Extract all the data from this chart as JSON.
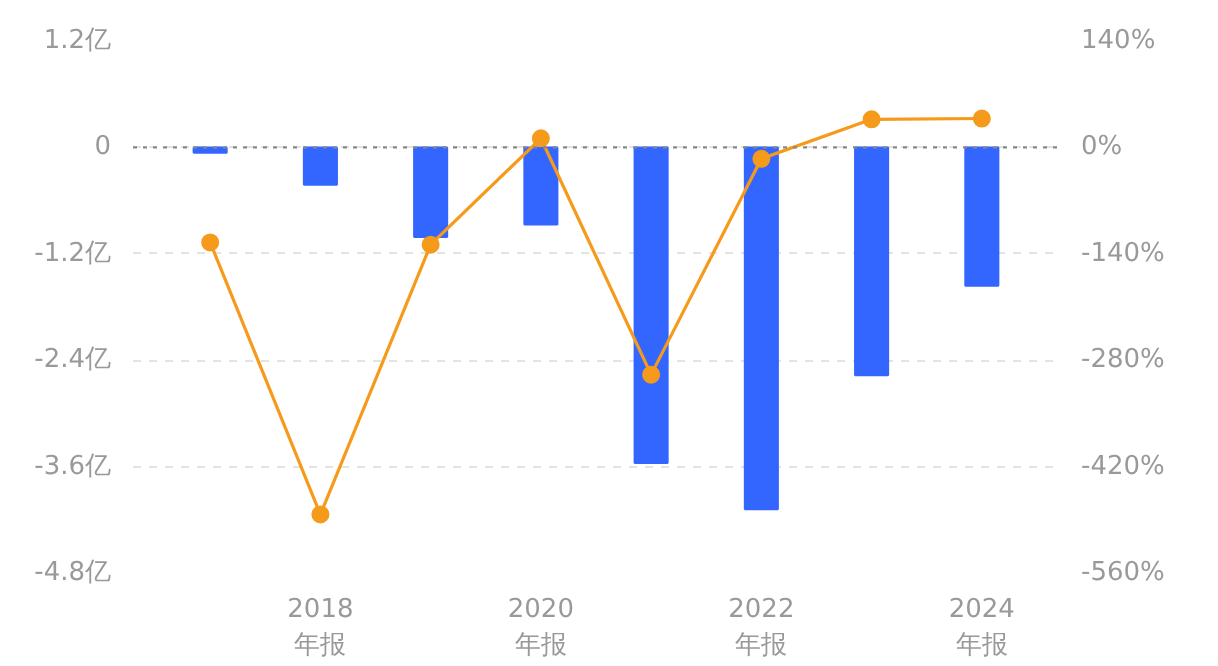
{
  "chart_data": {
    "type": "bar",
    "categories": [
      null,
      "2018\n年报",
      null,
      "2020\n年报",
      null,
      "2022\n年报",
      null,
      "2024\n年报"
    ],
    "series": [
      {
        "color": "#3366ff",
        "values": [
          -0.06,
          -0.42,
          -1.01,
          -0.87,
          -3.56,
          -4.08,
          -2.57,
          -1.56
        ]
      },
      {
        "type": "line",
        "axis": "y2",
        "color": "#f59a1b",
        "values": [
          -125,
          -483,
          -128,
          12,
          -299,
          -15,
          37,
          38
        ]
      }
    ],
    "ylim": [
      -4.8,
      1.2
    ],
    "yticks": [
      {
        "value": 1.2,
        "label": "1.2亿"
      },
      0,
      {
        "value": -1.2,
        "label": "-1.2亿"
      },
      {
        "value": -2.4,
        "label": "-2.4亿"
      },
      {
        "value": -3.6,
        "label": "-3.6亿"
      },
      {
        "value": -4.8,
        "label": "-4.8亿"
      }
    ],
    "y2lim": [
      -560,
      140
    ],
    "y2ticks": [
      {
        "value": 140,
        "label": "140%"
      },
      {
        "value": 0,
        "label": "0%"
      },
      {
        "value": -140,
        "label": "-140%"
      },
      {
        "value": -280,
        "label": "-280%"
      },
      {
        "value": -420,
        "label": "-420%"
      },
      {
        "value": -560,
        "label": "-560%"
      }
    ],
    "ref_lines": [
      {
        "axis": "y",
        "value": 0,
        "color": "#888888",
        "line_style": "dotted"
      }
    ],
    "grid": "y",
    "marker": "circle",
    "line_style": "solid"
  }
}
